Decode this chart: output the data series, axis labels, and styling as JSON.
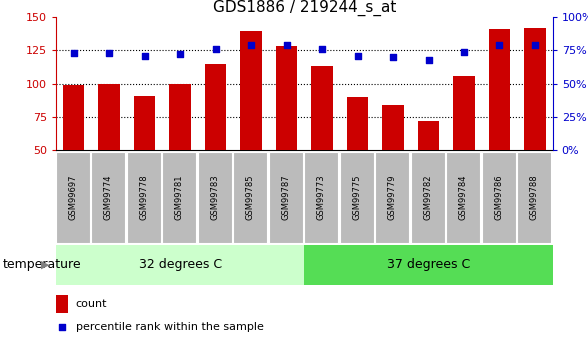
{
  "title": "GDS1886 / 219244_s_at",
  "categories": [
    "GSM99697",
    "GSM99774",
    "GSM99778",
    "GSM99781",
    "GSM99783",
    "GSM99785",
    "GSM99787",
    "GSM99773",
    "GSM99775",
    "GSM99779",
    "GSM99782",
    "GSM99784",
    "GSM99786",
    "GSM99788"
  ],
  "bar_values": [
    99,
    100,
    91,
    100,
    115,
    140,
    128,
    113,
    90,
    84,
    72,
    106,
    141,
    142
  ],
  "percentile_values": [
    73,
    73,
    71,
    72,
    76,
    79,
    79,
    76,
    71,
    70,
    68,
    74,
    79,
    79
  ],
  "bar_color": "#cc0000",
  "percentile_color": "#0000cc",
  "ylim_left": [
    50,
    150
  ],
  "ylim_right": [
    0,
    100
  ],
  "yticks_left": [
    50,
    75,
    100,
    125,
    150
  ],
  "yticks_right": [
    0,
    25,
    50,
    75,
    100
  ],
  "ytick_labels_right": [
    "0%",
    "25%",
    "50%",
    "75%",
    "100%"
  ],
  "group1_label": "32 degrees C",
  "group2_label": "37 degrees C",
  "group1_count": 7,
  "group2_count": 7,
  "group_label": "temperature",
  "group1_color": "#ccffcc",
  "group2_color": "#55dd55",
  "legend_count_label": "count",
  "legend_percentile_label": "percentile rank within the sample",
  "background_color": "#ffffff",
  "tick_label_bg": "#bbbbbb",
  "bar_bottom": 50,
  "grid_linestyle": "dotted",
  "grid_linewidth": 0.8,
  "title_fontsize": 11,
  "axis_fontsize": 8,
  "tick_label_fontsize": 6,
  "group_label_fontsize": 9,
  "legend_fontsize": 8
}
